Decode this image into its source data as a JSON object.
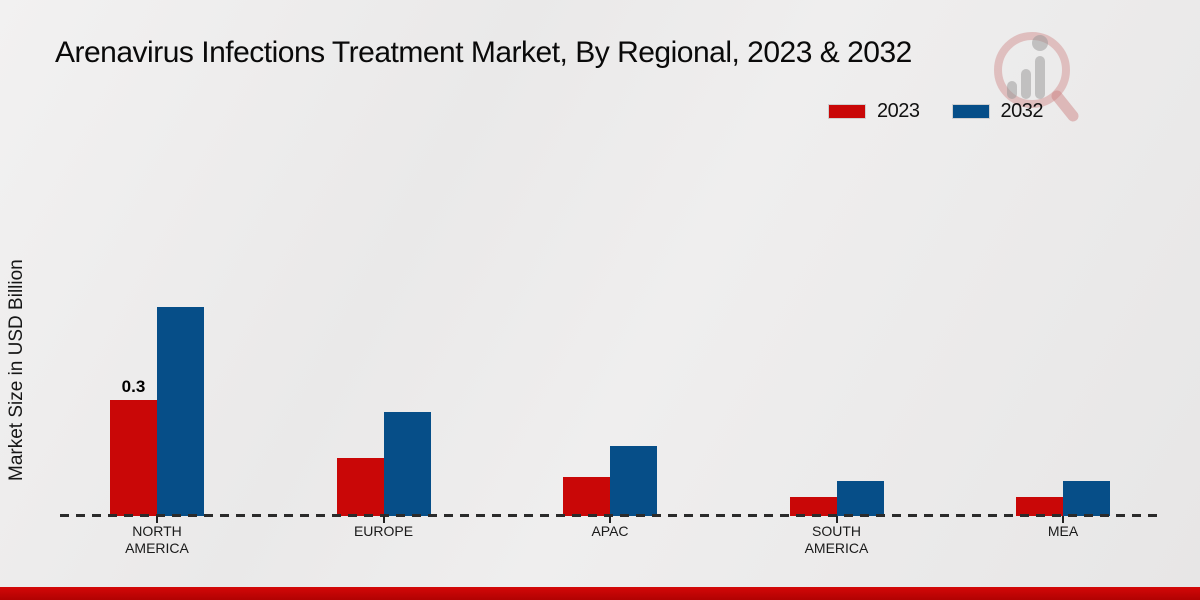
{
  "title": "Arenavirus Infections Treatment Market, By Regional, 2023 & 2032",
  "y_axis_label": "Market Size in USD Billion",
  "legend": {
    "items": [
      {
        "label": "2023",
        "color": "#c90707"
      },
      {
        "label": "2032",
        "color": "#064e88"
      }
    ]
  },
  "colors": {
    "series_2023": "#c90707",
    "series_2032": "#064e88",
    "footer_bar": "#c40404",
    "axis_line": "#2b2b2b"
  },
  "watermark_icon": "magnifier-bar-chart-logo",
  "chart_data": {
    "type": "bar",
    "categories": [
      "NORTH AMERICA",
      "EUROPE",
      "APAC",
      "SOUTH AMERICA",
      "MEA"
    ],
    "series": [
      {
        "name": "2023",
        "color": "#c90707",
        "values": [
          0.3,
          0.15,
          0.1,
          0.05,
          0.05
        ]
      },
      {
        "name": "2032",
        "color": "#064e88",
        "values": [
          0.54,
          0.27,
          0.18,
          0.09,
          0.09
        ]
      }
    ],
    "value_labels": [
      {
        "series": "2023",
        "category_index": 0,
        "text": "0.3"
      }
    ],
    "xlabel": "",
    "ylabel": "Market Size in USD Billion",
    "ylim": [
      0,
      0.6
    ],
    "grid": false,
    "legend_position": "top-right",
    "baseline_style": "dashed"
  }
}
